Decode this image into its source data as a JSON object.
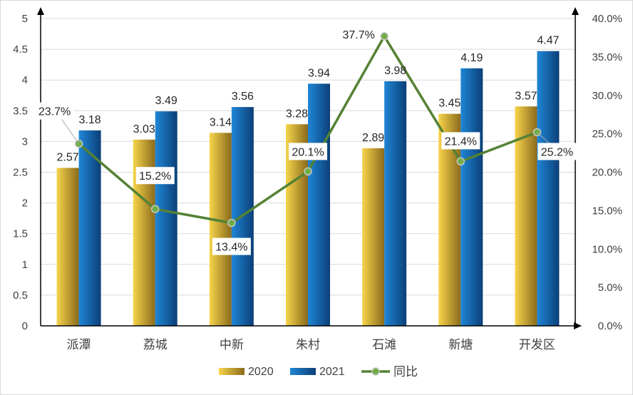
{
  "chart_data": {
    "type": "bar",
    "categories": [
      "派潭",
      "荔城",
      "中新",
      "朱村",
      "石滩",
      "新塘",
      "开发区"
    ],
    "series": [
      {
        "name": "2020",
        "type": "bar",
        "axis": "left",
        "values": [
          2.57,
          3.03,
          3.14,
          3.28,
          2.89,
          3.45,
          3.57
        ],
        "labels": [
          "2.57",
          "3.03",
          "3.14",
          "3.28",
          "2.89",
          "3.45",
          "3.57"
        ]
      },
      {
        "name": "2021",
        "type": "bar",
        "axis": "left",
        "values": [
          3.18,
          3.49,
          3.56,
          3.94,
          3.98,
          4.19,
          4.47
        ],
        "labels": [
          "3.18",
          "3.49",
          "3.56",
          "3.94",
          "3.98",
          "4.19",
          "4.47"
        ]
      },
      {
        "name": "同比",
        "type": "line",
        "axis": "right",
        "values": [
          23.7,
          15.2,
          13.4,
          20.1,
          37.7,
          21.4,
          25.2
        ],
        "labels": [
          "23.7%",
          "15.2%",
          "13.4%",
          "20.1%",
          "37.7%",
          "21.4%",
          "25.2%"
        ]
      }
    ],
    "y_left": {
      "min": 0,
      "max": 5,
      "ticks": [
        "0",
        "0.5",
        "1",
        "1.5",
        "2",
        "2.5",
        "3",
        "3.5",
        "4",
        "4.5",
        "5"
      ]
    },
    "y_right": {
      "min": 0,
      "max": 40,
      "ticks": [
        "0.0%",
        "5.0%",
        "10.0%",
        "15.0%",
        "20.0%",
        "25.0%",
        "30.0%",
        "35.0%",
        "40.0%"
      ]
    },
    "grid": true,
    "legend": "bottom",
    "colors": {
      "bar2020_light": "#F7D44B",
      "bar2020_dark": "#8A6A1C",
      "bar2021_light": "#1F86D6",
      "bar2021_dark": "#0C3F78",
      "line": "#548235",
      "marker": "#70AD47"
    }
  }
}
